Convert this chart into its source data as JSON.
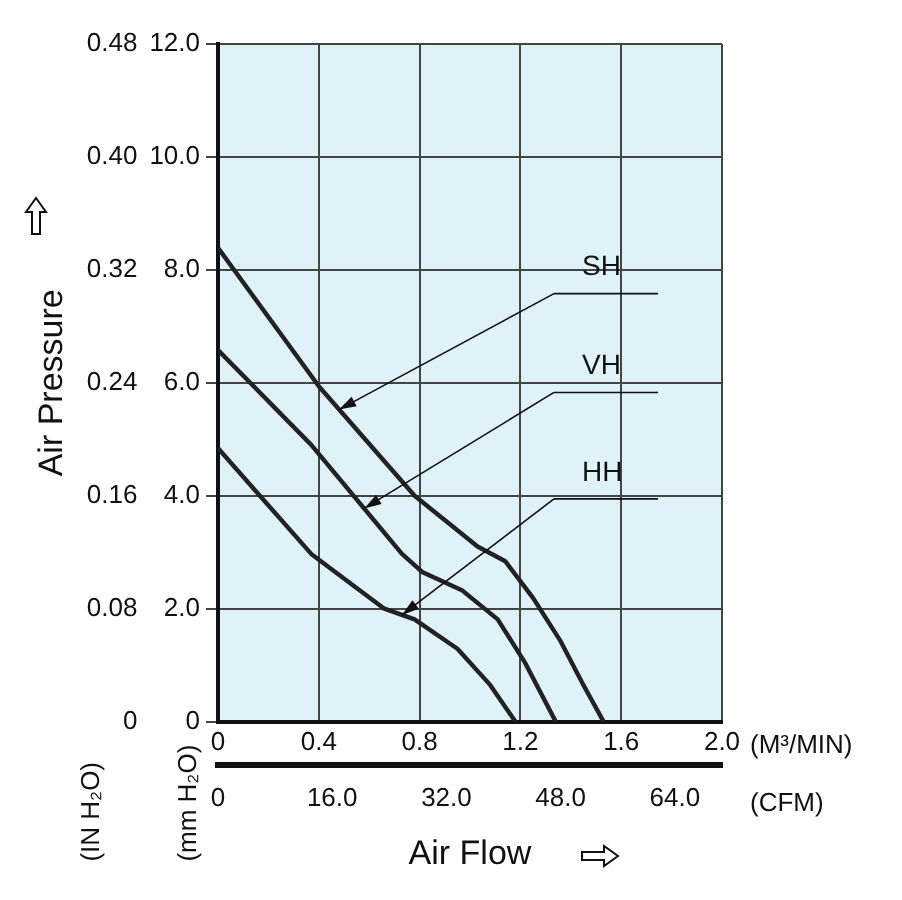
{
  "chart_data": {
    "type": "line",
    "xlabel": "Air Flow",
    "ylabel": "Air Pressure",
    "annotations": [
      "(IN H₂O)",
      "(mm H₂O)",
      "(M³/MIN)",
      "(CFM)",
      {
        "text": "SH",
        "x": 0.48,
        "y": 0.221
      },
      {
        "text": "VH",
        "x": 0.58,
        "y": 0.151
      },
      {
        "text": "HH",
        "x": 0.73,
        "y": 0.0756
      }
    ],
    "series": [
      {
        "color": "#222222",
        "axis": "y2",
        "x": [
          0,
          0.4,
          0.78,
          1.03,
          1.14,
          1.25,
          1.36,
          1.45,
          1.53
        ],
        "values": [
          8.39,
          5.94,
          4.0,
          3.1,
          2.84,
          2.19,
          1.42,
          0.65,
          0
        ]
      },
      {
        "color": "#222222",
        "axis": "y2",
        "x": [
          0,
          0.37,
          0.73,
          0.81,
          0.97,
          1.11,
          1.22,
          1.34
        ],
        "values": [
          6.58,
          4.9,
          2.97,
          2.65,
          2.32,
          1.81,
          1.03,
          0
        ]
      },
      {
        "color": "#222222",
        "axis": "y2",
        "x": [
          0,
          0.37,
          0.66,
          0.78,
          0.95,
          1.08,
          1.18
        ],
        "values": [
          4.84,
          2.97,
          2.0,
          1.81,
          1.29,
          0.65,
          0
        ]
      }
    ],
    "xlim": [
      0,
      2.0
    ],
    "xticks": [
      0,
      0.4,
      0.8,
      1.2,
      1.6,
      {
        "value": 2.0,
        "label": "2.0"
      }
    ],
    "x2lim": [
      0,
      70.6
    ],
    "x2ticks": [
      0,
      {
        "value": 16,
        "label": "16.0"
      },
      {
        "value": 32,
        "label": "32.0"
      },
      {
        "value": 48,
        "label": "48.0"
      },
      {
        "value": 64,
        "label": "64.0"
      }
    ],
    "ylim": [
      0,
      0.48
    ],
    "yticks": [
      0,
      0.08,
      0.16,
      0.24,
      0.32,
      {
        "value": 0.4,
        "label": "0.40"
      },
      0.48
    ],
    "y2lim": [
      0,
      12
    ],
    "y2ticks": [
      0,
      {
        "value": 2,
        "label": "2.0"
      },
      {
        "value": 4,
        "label": "4.0"
      },
      {
        "value": 6,
        "label": "6.0"
      },
      {
        "value": 8,
        "label": "8.0"
      },
      {
        "value": 10,
        "label": "10.0"
      },
      {
        "value": 12,
        "label": "12.0"
      }
    ],
    "grid": true,
    "legend": false,
    "marker": "none",
    "line_style": "solid"
  }
}
